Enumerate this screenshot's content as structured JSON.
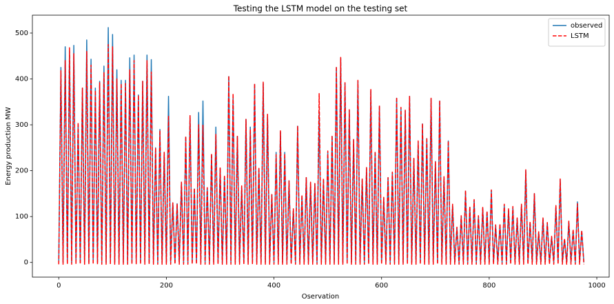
{
  "chart_data": {
    "type": "line",
    "title": "Testing the LSTM model on the testing set",
    "xlabel": "Oservation",
    "ylabel": "Energy production MW",
    "x": [
      0,
      4,
      8,
      12,
      16,
      20,
      24,
      28,
      32,
      36,
      40,
      44,
      48,
      52,
      56,
      60,
      64,
      68,
      72,
      76,
      80,
      84,
      88,
      92,
      96,
      100,
      104,
      108,
      112,
      116,
      120,
      124,
      128,
      132,
      136,
      140,
      144,
      148,
      152,
      156,
      160,
      164,
      168,
      172,
      176,
      180,
      184,
      188,
      192,
      196,
      200,
      204,
      208,
      212,
      216,
      220,
      224,
      228,
      232,
      236,
      240,
      244,
      248,
      252,
      256,
      260,
      264,
      268,
      272,
      276,
      280,
      284,
      288,
      292,
      296,
      300,
      304,
      308,
      312,
      316,
      320,
      324,
      328,
      332,
      336,
      340,
      344,
      348,
      352,
      356,
      360,
      364,
      368,
      372,
      376,
      380,
      384,
      388,
      392,
      396,
      400,
      404,
      408,
      412,
      416,
      420,
      424,
      428,
      432,
      436,
      440,
      444,
      448,
      452,
      456,
      460,
      464,
      468,
      472,
      476,
      480,
      484,
      488,
      492,
      496,
      500,
      504,
      508,
      512,
      516,
      520,
      524,
      528,
      532,
      536,
      540,
      544,
      548,
      552,
      556,
      560,
      564,
      568,
      572,
      576,
      580,
      584,
      588,
      592,
      596,
      600,
      604,
      608,
      612,
      616,
      620,
      624,
      628,
      632,
      636,
      640,
      644,
      648,
      652,
      656,
      660,
      664,
      668,
      672,
      676,
      680,
      684,
      688,
      692,
      696,
      700,
      704,
      708,
      712,
      716,
      720,
      724,
      728,
      732,
      736,
      740,
      744,
      748,
      752,
      756,
      760,
      764,
      768,
      772,
      776,
      780,
      784,
      788,
      792,
      796,
      800,
      804,
      808,
      812,
      816,
      820,
      824,
      828,
      832,
      836,
      840,
      844,
      848,
      852,
      856,
      860,
      864,
      868,
      872,
      876,
      880,
      884,
      888,
      892,
      896,
      900,
      904,
      908,
      912,
      916,
      920,
      924,
      928,
      932,
      936,
      940,
      944,
      948,
      952,
      956,
      960,
      964,
      968,
      972,
      976
    ],
    "series": [
      {
        "name": "observed",
        "color": "#1f77b4",
        "linestyle": "solid",
        "values": [
          0,
          425,
          0,
          470,
          0,
          460,
          0,
          473,
          0,
          300,
          0,
          380,
          0,
          485,
          0,
          443,
          0,
          380,
          0,
          395,
          0,
          428,
          0,
          512,
          0,
          497,
          0,
          420,
          0,
          397,
          0,
          397,
          0,
          446,
          0,
          452,
          0,
          365,
          0,
          395,
          0,
          452,
          0,
          442,
          0,
          250,
          0,
          290,
          0,
          240,
          0,
          362,
          0,
          130,
          0,
          128,
          0,
          175,
          0,
          273,
          0,
          320,
          0,
          160,
          0,
          327,
          0,
          352,
          0,
          163,
          0,
          235,
          0,
          295,
          0,
          205,
          0,
          188,
          0,
          405,
          0,
          360,
          0,
          275,
          0,
          165,
          0,
          312,
          0,
          295,
          0,
          388,
          0,
          205,
          0,
          390,
          0,
          322,
          0,
          148,
          0,
          240,
          0,
          285,
          0,
          240,
          0,
          178,
          0,
          115,
          0,
          297,
          0,
          145,
          0,
          185,
          0,
          173,
          0,
          172,
          0,
          330,
          0,
          180,
          0,
          240,
          0,
          275,
          0,
          425,
          0,
          445,
          0,
          390,
          0,
          332,
          0,
          268,
          0,
          395,
          0,
          180,
          0,
          205,
          0,
          375,
          0,
          240,
          0,
          340,
          0,
          140,
          0,
          185,
          0,
          195,
          0,
          358,
          0,
          335,
          0,
          330,
          0,
          362,
          0,
          225,
          0,
          262,
          0,
          302,
          0,
          270,
          0,
          357,
          0,
          220,
          0,
          352,
          0,
          185,
          0,
          265,
          0,
          125,
          0,
          75,
          0,
          100,
          0,
          155,
          0,
          120,
          0,
          135,
          0,
          100,
          0,
          118,
          0,
          110,
          0,
          157,
          0,
          80,
          0,
          82,
          0,
          125,
          0,
          115,
          0,
          120,
          0,
          95,
          0,
          125,
          0,
          200,
          0,
          87,
          0,
          150,
          0,
          65,
          0,
          95,
          0,
          85,
          0,
          55,
          0,
          122,
          0,
          180,
          0,
          50,
          0,
          88,
          0,
          70,
          0,
          132,
          0,
          68,
          0
        ]
      },
      {
        "name": "LSTM",
        "color": "#ff0000",
        "linestyle": "dashed",
        "values": [
          -4,
          418,
          -4,
          440,
          -4,
          468,
          -4,
          455,
          -4,
          305,
          -4,
          380,
          -4,
          460,
          -4,
          430,
          -4,
          375,
          -4,
          392,
          -4,
          415,
          -4,
          475,
          -4,
          470,
          -4,
          400,
          -4,
          390,
          -4,
          390,
          -4,
          420,
          -4,
          440,
          -4,
          365,
          -4,
          395,
          -4,
          440,
          -4,
          415,
          -4,
          250,
          -4,
          288,
          -4,
          240,
          -4,
          320,
          -4,
          130,
          -4,
          128,
          -4,
          175,
          -4,
          275,
          -4,
          320,
          -4,
          162,
          -4,
          300,
          -4,
          300,
          -4,
          163,
          -4,
          237,
          -4,
          280,
          -4,
          207,
          -4,
          190,
          -4,
          407,
          -4,
          368,
          -4,
          275,
          -4,
          167,
          -4,
          312,
          -4,
          290,
          -4,
          390,
          -4,
          207,
          -4,
          393,
          -4,
          323,
          -4,
          148,
          -4,
          235,
          -4,
          287,
          -4,
          237,
          -4,
          178,
          -4,
          117,
          -4,
          298,
          -4,
          147,
          -4,
          185,
          -4,
          175,
          -4,
          172,
          -4,
          368,
          -4,
          183,
          -4,
          243,
          -4,
          277,
          -4,
          427,
          -4,
          447,
          -4,
          392,
          -4,
          333,
          -4,
          268,
          -4,
          397,
          -4,
          182,
          -4,
          207,
          -4,
          377,
          -4,
          242,
          -4,
          342,
          -4,
          142,
          -4,
          185,
          -4,
          197,
          -4,
          360,
          -4,
          338,
          -4,
          332,
          -4,
          363,
          -4,
          227,
          -4,
          265,
          -4,
          303,
          -4,
          272,
          -4,
          358,
          -4,
          220,
          -4,
          353,
          -4,
          187,
          -4,
          265,
          -4,
          127,
          -4,
          77,
          -4,
          102,
          -4,
          157,
          -4,
          122,
          -4,
          137,
          -4,
          102,
          -4,
          120,
          -4,
          112,
          -4,
          158,
          -4,
          82,
          -4,
          84,
          -4,
          127,
          -4,
          117,
          -4,
          122,
          -4,
          97,
          -4,
          127,
          -4,
          202,
          -4,
          89,
          -4,
          150,
          -4,
          67,
          -4,
          97,
          -4,
          87,
          -4,
          57,
          -4,
          124,
          -4,
          182,
          -4,
          52,
          -4,
          90,
          -4,
          72,
          -4,
          128,
          -4,
          70,
          -4
        ]
      }
    ],
    "xlim": [
      -49,
      1023
    ],
    "xticks": [
      0,
      200,
      400,
      600,
      800,
      1000
    ],
    "ylim": [
      -32,
      539
    ],
    "yticks": [
      0,
      100,
      200,
      300,
      400,
      500
    ],
    "grid": false,
    "legend": "upper right"
  }
}
